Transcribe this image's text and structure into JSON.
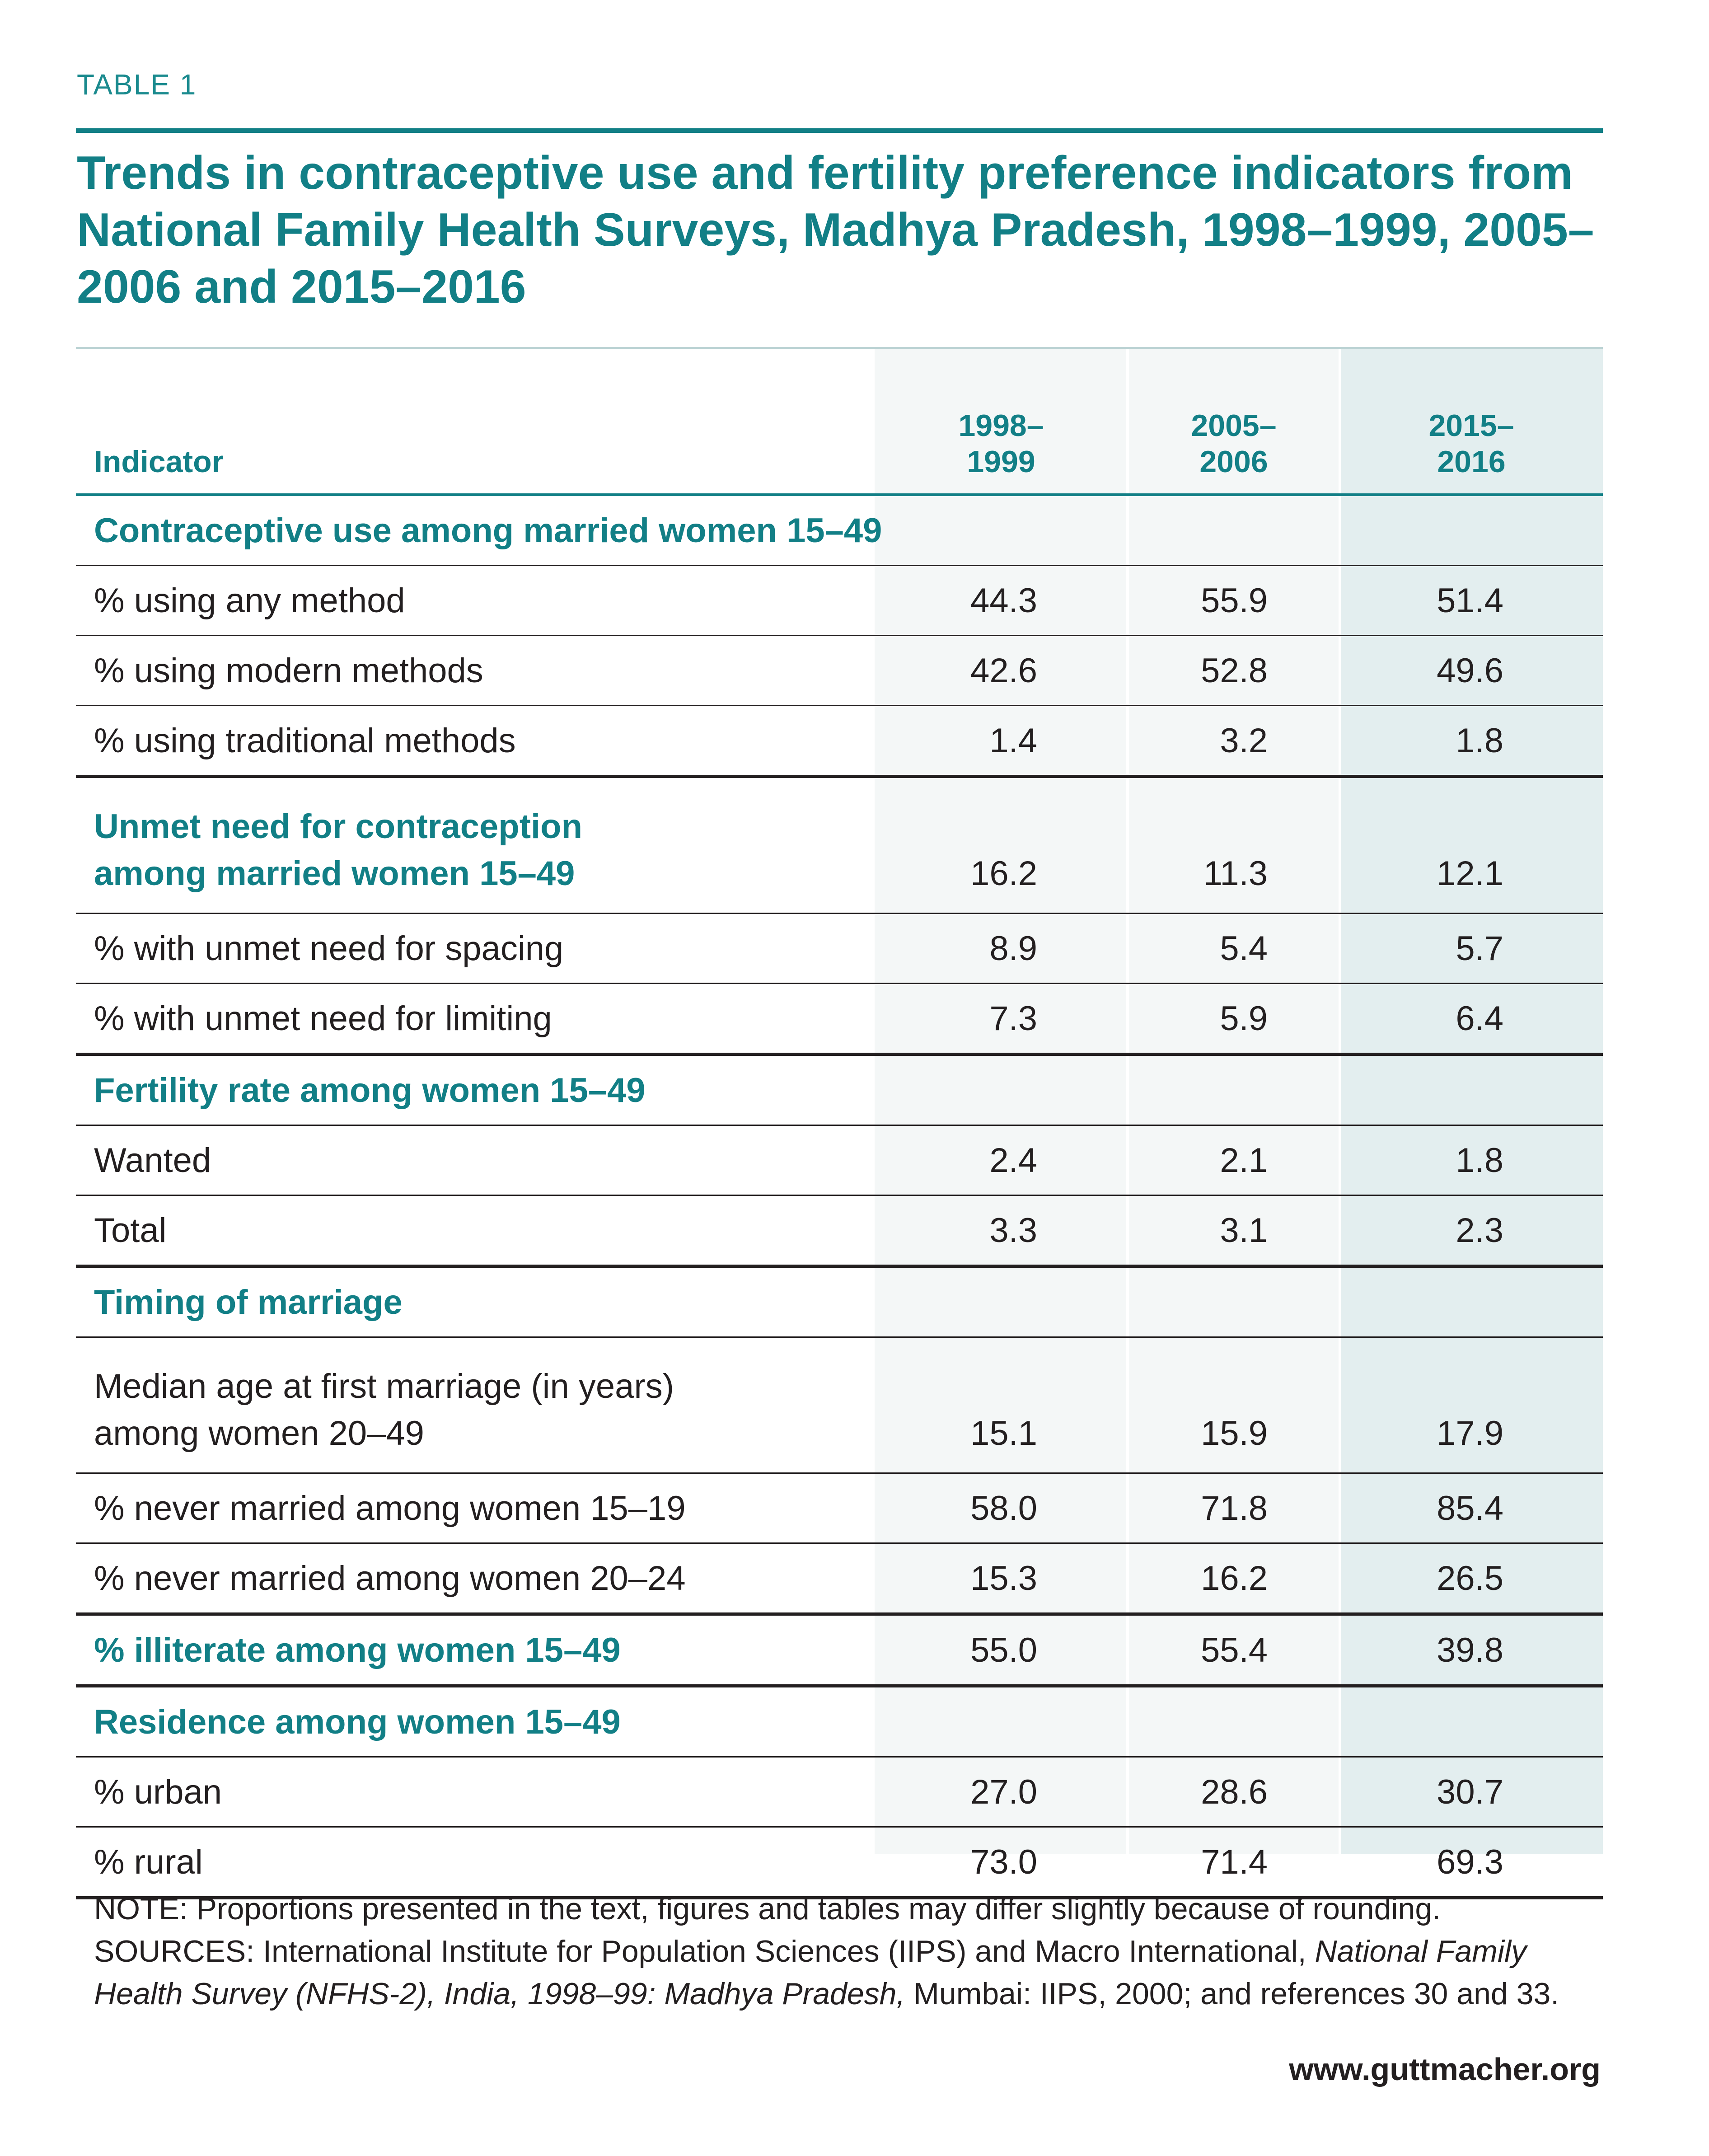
{
  "label": "TABLE 1",
  "title": "Trends in contraceptive use and fertility preference indicators from National Family Health Surveys, Madhya Pradesh, 1998–1999, 2005–2006 and 2015–2016",
  "header": {
    "indicator": "Indicator",
    "col1_a": "1998–",
    "col1_b": "1999",
    "col2_a": "2005–",
    "col2_b": "2006",
    "col3_a": "2015–",
    "col3_b": "2016"
  },
  "rows": {
    "sec_contraceptive": "Contraceptive use among married women 15–49",
    "any_method": {
      "label": "% using any method",
      "v1": "44.3",
      "v2": "55.9",
      "v3": "51.4"
    },
    "modern": {
      "label": "% using modern methods",
      "v1": "42.6",
      "v2": "52.8",
      "v3": "49.6"
    },
    "traditional": {
      "label": "% using traditional methods",
      "v1": "1.4",
      "v2": "3.2",
      "v3": "1.8"
    },
    "unmet": {
      "label_a": "Unmet need for contraception",
      "label_b": "among married women 15–49",
      "v1": "16.2",
      "v2": "11.3",
      "v3": "12.1"
    },
    "spacing": {
      "label": "% with unmet need for spacing",
      "v1": "8.9",
      "v2": "5.4",
      "v3": "5.7"
    },
    "limiting": {
      "label": "% with unmet need for limiting",
      "v1": "7.3",
      "v2": "5.9",
      "v3": "6.4"
    },
    "sec_fertility": "Fertility rate among women 15–49",
    "wanted": {
      "label": "Wanted",
      "v1": "2.4",
      "v2": "2.1",
      "v3": "1.8"
    },
    "total": {
      "label": "Total",
      "v1": "3.3",
      "v2": "3.1",
      "v3": "2.3"
    },
    "sec_marriage": "Timing of marriage",
    "median_age": {
      "label_a": "Median age at first marriage (in years)",
      "label_b": "among women 20–49",
      "v1": "15.1",
      "v2": "15.9",
      "v3": "17.9"
    },
    "never_15_19": {
      "label": "% never married among women 15–19",
      "v1": "58.0",
      "v2": "71.8",
      "v3": "85.4"
    },
    "never_20_24": {
      "label": "% never married among women 20–24",
      "v1": "15.3",
      "v2": "16.2",
      "v3": "26.5"
    },
    "illiterate": {
      "label": "% illiterate among women 15–49",
      "v1": "55.0",
      "v2": "55.4",
      "v3": "39.8"
    },
    "sec_residence": "Residence among women 15–49",
    "urban": {
      "label": "% urban",
      "v1": "27.0",
      "v2": "28.6",
      "v3": "30.7"
    },
    "rural": {
      "label": "% rural",
      "v1": "73.0",
      "v2": "71.4",
      "v3": "69.3"
    }
  },
  "note": {
    "part1": "NOTE: Proportions presented in the text, figures and tables may differ slightly because of rounding. SOURCES: International Institute for Population Sciences (IIPS) and Macro International, ",
    "italic": "National Family Health Survey (NFHS-2), India, 1998–99: Madhya Pradesh,",
    "part2": " Mumbai: IIPS, 2000; and references 30 and 33."
  },
  "url": "www.guttmacher.org"
}
